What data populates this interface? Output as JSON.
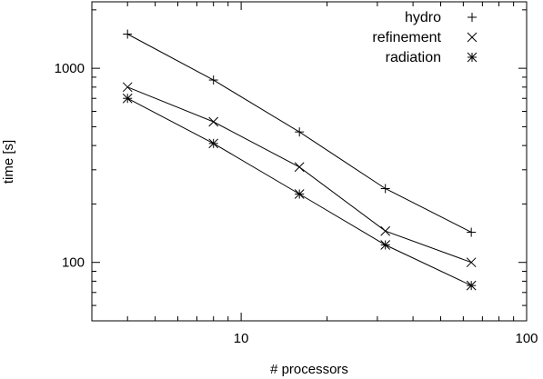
{
  "chart_data": {
    "type": "line",
    "xlabel": "# processors",
    "ylabel": "time [s]",
    "x_scale": "log",
    "y_scale": "log",
    "xlim": [
      3,
      100
    ],
    "ylim": [
      50,
      2200
    ],
    "x_ticks": [
      {
        "value": 10,
        "label": "10"
      },
      {
        "value": 100,
        "label": "100"
      }
    ],
    "y_ticks": [
      {
        "value": 100,
        "label": "100"
      },
      {
        "value": 1000,
        "label": "1000"
      }
    ],
    "x_minor_ticks": [
      4,
      5,
      6,
      7,
      8,
      9,
      20,
      30,
      40,
      50,
      60,
      70,
      80,
      90
    ],
    "y_minor_ticks": [
      60,
      70,
      80,
      90,
      200,
      300,
      400,
      500,
      600,
      700,
      800,
      900,
      2000
    ],
    "grid": false,
    "legend_position": "top-right",
    "series": [
      {
        "name": "hydro",
        "marker": "plus",
        "x": [
          4,
          8,
          16,
          32,
          64
        ],
        "y": [
          1500,
          870,
          470,
          240,
          143
        ]
      },
      {
        "name": "refinement",
        "marker": "cross",
        "x": [
          4,
          8,
          16,
          32,
          64
        ],
        "y": [
          800,
          530,
          310,
          145,
          100
        ]
      },
      {
        "name": "radiation",
        "marker": "star",
        "x": [
          4,
          8,
          16,
          32,
          64
        ],
        "y": [
          700,
          410,
          225,
          123,
          76
        ]
      }
    ]
  }
}
